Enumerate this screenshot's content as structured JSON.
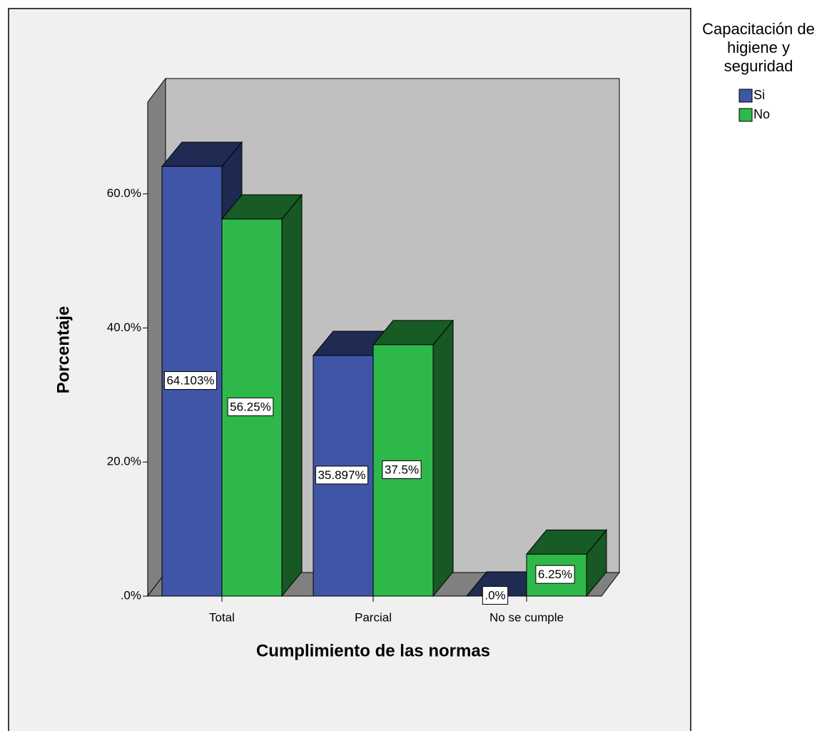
{
  "chart_data": {
    "type": "bar3d",
    "x_label": "Cumplimiento de las normas",
    "y_label": "Porcentaje",
    "legend_title": "Capacitación de higiene y seguridad",
    "legend": "right",
    "categories": [
      "Total",
      "Parcial",
      "No se cumple"
    ],
    "series": [
      {
        "name": "Si",
        "color": "#3f55a6",
        "values": [
          64.103,
          35.897,
          0
        ],
        "value_labels": [
          "64.103%",
          "35.897%",
          ".0%"
        ]
      },
      {
        "name": "No",
        "color": "#2fb84a",
        "values": [
          56.25,
          37.5,
          6.25
        ],
        "value_labels": [
          "56.25%",
          "37.5%",
          "6.25%"
        ]
      }
    ],
    "ylim": [
      0,
      73.7
    ],
    "yticks": [
      {
        "value": 0,
        "label": ".0%"
      },
      {
        "value": 20,
        "label": "20.0%"
      },
      {
        "value": 40,
        "label": "40.0%"
      },
      {
        "value": 60,
        "label": "60.0%"
      }
    ],
    "grid": false
  }
}
